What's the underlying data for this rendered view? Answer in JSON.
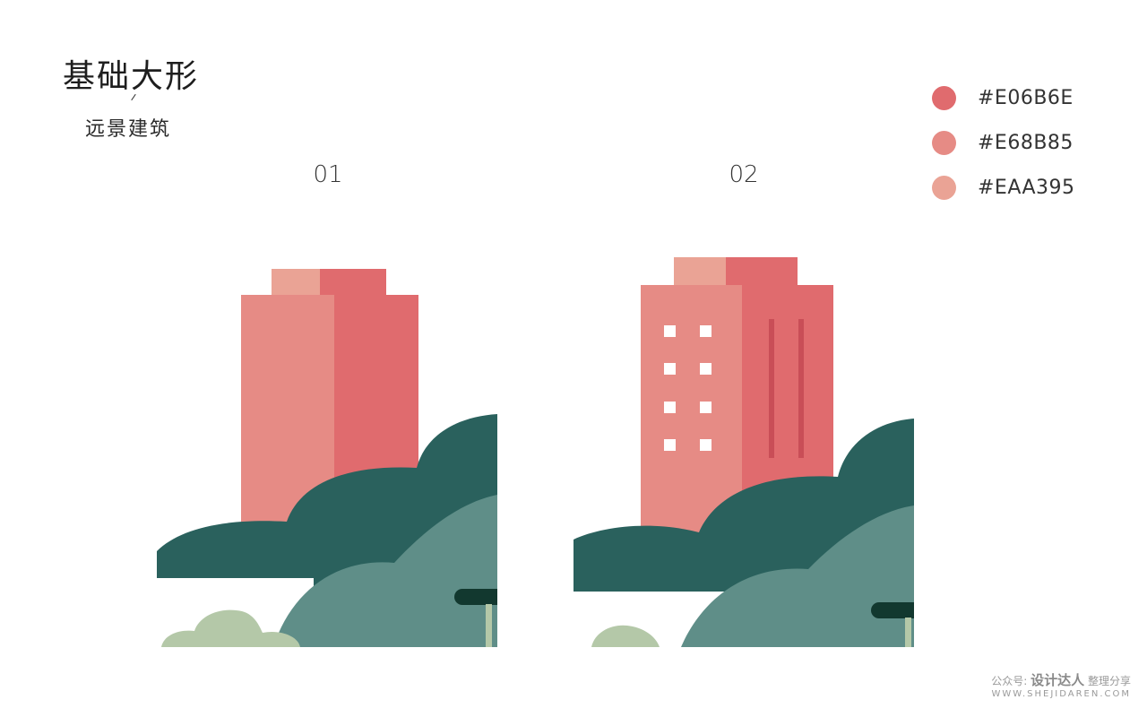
{
  "header": {
    "title": "基础大形",
    "subtitle": "远景建筑"
  },
  "steps": [
    {
      "label": "01"
    },
    {
      "label": "02"
    }
  ],
  "palette": [
    {
      "hex": "#E06B6E",
      "label": "#E06B6E"
    },
    {
      "hex": "#E68B85",
      "label": "#E68B85"
    },
    {
      "hex": "#EAA395",
      "label": "#EAA395"
    }
  ],
  "colors": {
    "building_light": "#E68B85",
    "building_dark": "#E06B6E",
    "roof_light": "#EAA395",
    "dark_tree": "#2A615D",
    "mid_tree": "#5F8E88",
    "light_bush": "#B4C8A8",
    "window": "#ffffff",
    "stripe": "#C94E57",
    "bench": "#12382F"
  },
  "watermark": {
    "prefix": "公众号:",
    "brand": "设计达人",
    "suffix": "整理分享",
    "url": "WWW.SHEJIDAREN.COM"
  }
}
